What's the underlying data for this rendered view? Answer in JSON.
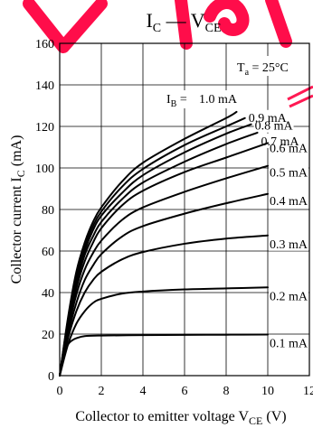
{
  "chart_data": {
    "type": "line",
    "title": {
      "main": "I",
      "main_sub": "C",
      "dash": " — ",
      "second": "V",
      "second_sub": "CE"
    },
    "xlabel": {
      "text": "Collector to emitter voltage  V",
      "sub": "CE",
      "unit": "  (V)"
    },
    "ylabel": {
      "text": "Collector current  I",
      "sub": "C",
      "unit": "  (mA)"
    },
    "xlim": [
      0,
      12
    ],
    "ylim": [
      0,
      160
    ],
    "xticks": [
      "0",
      "2",
      "4",
      "6",
      "8",
      "10",
      "12"
    ],
    "yticks": [
      "0",
      "20",
      "40",
      "60",
      "80",
      "100",
      "120",
      "140",
      "160"
    ],
    "grid": true,
    "annotation": {
      "text": "T",
      "sub": "a",
      "rest": " = 25°C"
    },
    "series_label_prefix": "I",
    "series_label_sub": "B",
    "series": [
      {
        "name": "0.1 mA",
        "label": "0.1 mA",
        "x": [
          0,
          0.2,
          0.4,
          0.6,
          0.8,
          1.2,
          2,
          4,
          6,
          8,
          10
        ],
        "y": [
          0,
          10,
          15,
          17,
          18,
          19,
          19.3,
          19.5,
          19.6,
          19.7,
          19.8
        ]
      },
      {
        "name": "0.2 mA",
        "label": "0.2 mA",
        "x": [
          0,
          0.4,
          0.8,
          1.2,
          1.6,
          2,
          3,
          4,
          6,
          8,
          10
        ],
        "y": [
          0,
          15,
          25,
          31,
          35,
          37,
          39.5,
          40.5,
          41.5,
          42,
          42.5
        ]
      },
      {
        "name": "0.3 mA",
        "label": "0.3 mA",
        "x": [
          0,
          0.4,
          0.8,
          1.2,
          1.6,
          2,
          3,
          4,
          6,
          8,
          10
        ],
        "y": [
          0,
          18,
          31,
          40,
          46,
          50,
          56,
          59.5,
          63.5,
          66,
          67.5
        ]
      },
      {
        "name": "0.4 mA",
        "label": "0.4 mA",
        "x": [
          0,
          0.4,
          0.8,
          1.2,
          1.6,
          2,
          3,
          4,
          6,
          8,
          10
        ],
        "y": [
          0,
          20,
          35,
          46,
          53,
          58.5,
          67,
          72,
          78,
          83,
          87.5
        ]
      },
      {
        "name": "0.5 mA",
        "label": "0.5 mA",
        "x": [
          0,
          0.4,
          0.8,
          1.2,
          1.6,
          2,
          3,
          4,
          6,
          8,
          10
        ],
        "y": [
          0,
          22,
          39,
          51,
          59,
          65,
          75,
          81,
          88.5,
          95,
          101
        ]
      },
      {
        "name": "0.6 mA",
        "label": "0.6 mA",
        "x": [
          0,
          0.4,
          0.8,
          1.2,
          1.6,
          2,
          3,
          4,
          6,
          8,
          10
        ],
        "y": [
          0,
          24,
          42,
          55,
          64,
          71,
          82,
          89,
          98,
          105,
          112
        ]
      },
      {
        "name": "0.7 mA",
        "label": "0.7 mA",
        "x": [
          0,
          0.4,
          0.8,
          1.2,
          1.6,
          2,
          3,
          4,
          6,
          8,
          9.5
        ],
        "y": [
          0,
          25,
          44,
          58,
          67,
          74,
          85,
          93,
          103,
          111.5,
          117
        ]
      },
      {
        "name": "0.8 mA",
        "label": "0.8 mA",
        "x": [
          0,
          0.4,
          0.8,
          1.2,
          1.6,
          2,
          3,
          4,
          6,
          8,
          9.2
        ],
        "y": [
          0,
          26,
          46,
          60,
          70,
          77,
          88,
          96.5,
          107.5,
          116.5,
          121
        ]
      },
      {
        "name": "0.9 mA",
        "label": "0.9 mA",
        "x": [
          0,
          0.4,
          0.8,
          1.2,
          1.6,
          2,
          3,
          4,
          6,
          8,
          8.9
        ],
        "y": [
          0,
          27,
          48,
          62,
          72,
          79,
          91,
          99.5,
          111,
          120,
          124
        ]
      },
      {
        "name": "1.0 mA",
        "label": "1.0 mA",
        "x": [
          0,
          0.4,
          0.8,
          1.2,
          1.6,
          2,
          3,
          4,
          6,
          8,
          8.5
        ],
        "y": [
          0,
          28,
          50,
          64,
          74,
          81,
          93.5,
          102.5,
          114,
          124,
          127
        ]
      }
    ]
  }
}
